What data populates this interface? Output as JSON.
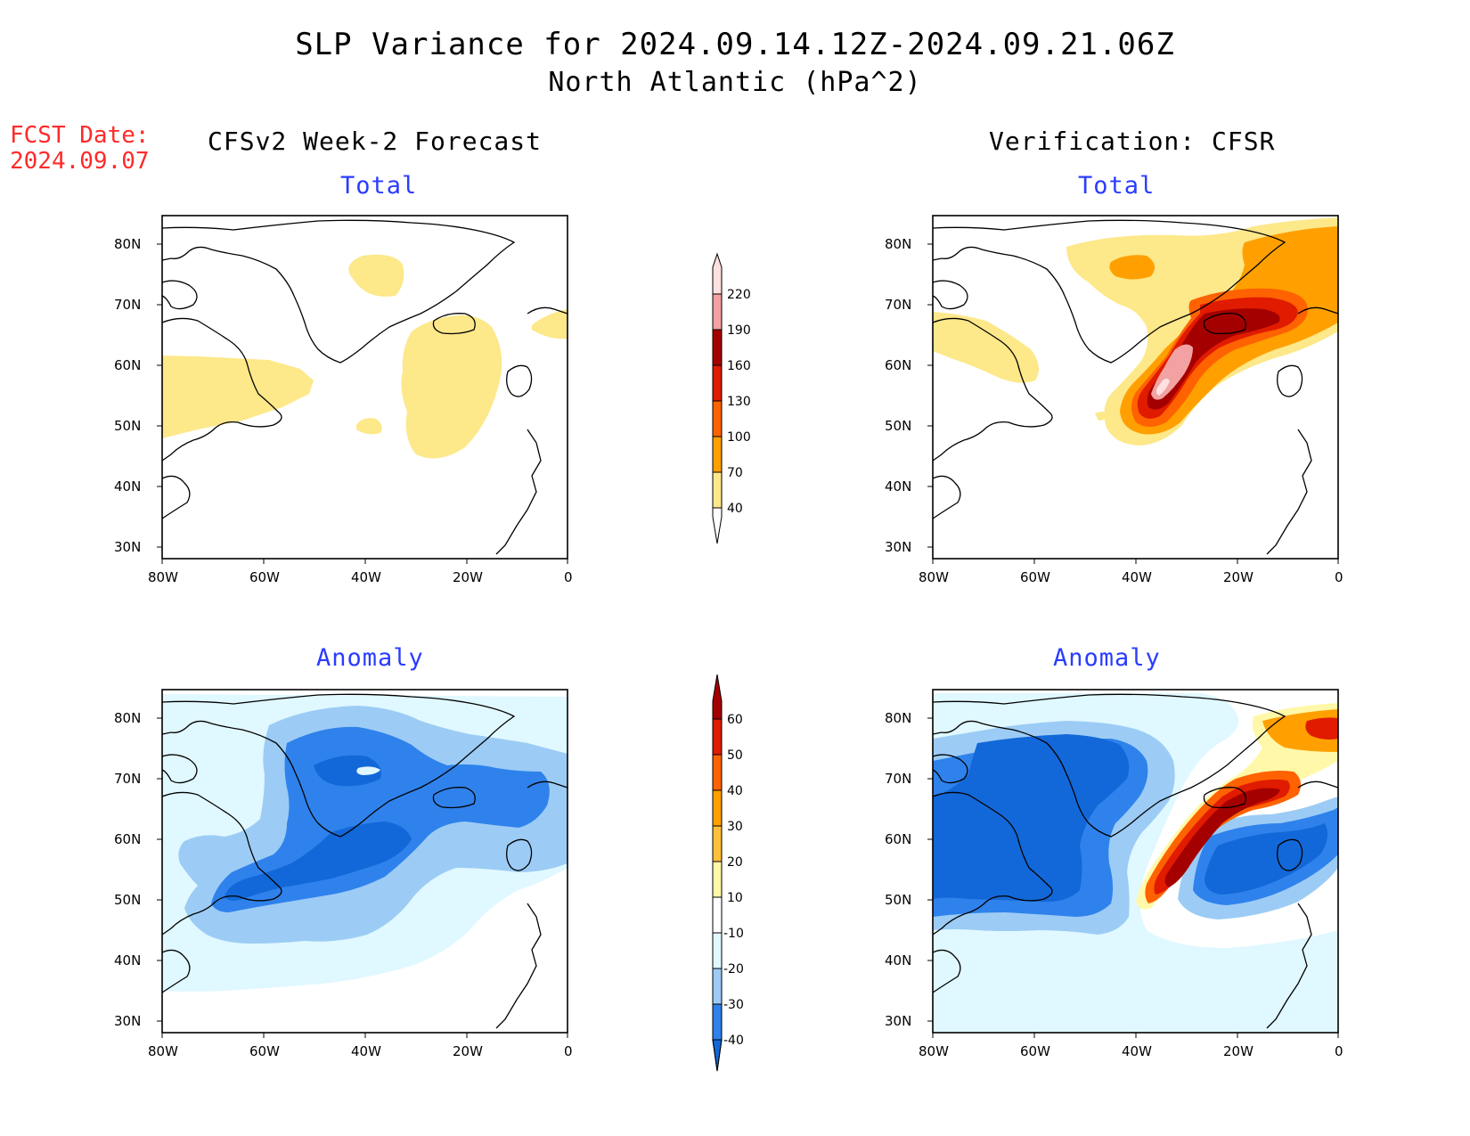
{
  "header": {
    "title_line1": "SLP Variance for 2024.09.14.12Z-2024.09.21.06Z",
    "title_line2": "North Atlantic (hPa^2)",
    "fcst_label": "FCST Date:",
    "fcst_date": "2024.09.07"
  },
  "columns": {
    "left_title": "CFSv2 Week-2 Forecast",
    "right_title": "Verification: CFSR"
  },
  "panels": {
    "forecast_total_label": "Total",
    "forecast_anomaly_label": "Anomaly",
    "verification_total_label": "Total",
    "verification_anomaly_label": "Anomaly"
  },
  "axes": {
    "lon_ticks": [
      "80W",
      "60W",
      "40W",
      "20W",
      "0"
    ],
    "lat_ticks": [
      "80N",
      "70N",
      "60N",
      "50N",
      "40N",
      "30N"
    ]
  },
  "colorbars": {
    "total": {
      "levels": [
        "40",
        "70",
        "100",
        "130",
        "160",
        "190",
        "220"
      ],
      "colors": [
        "#ffffff",
        "#fde88a",
        "#ffa000",
        "#ff6200",
        "#e01b00",
        "#a50000",
        "#f2a2a2",
        "#fde0e0"
      ]
    },
    "anomaly": {
      "levels": [
        "-40",
        "-30",
        "-20",
        "-10",
        "10",
        "20",
        "30",
        "40",
        "50",
        "60"
      ],
      "colors": [
        "#1268d8",
        "#2f82ec",
        "#9cccf5",
        "#e0f8ff",
        "#ffffff",
        "#fff8a8",
        "#ffc03a",
        "#ffa000",
        "#ff6200",
        "#e01b00",
        "#a50000"
      ]
    }
  },
  "map_colors": {
    "total_light": "#fde88a",
    "total_orange": "#ffa000",
    "total_dorange": "#ff6200",
    "total_red": "#e01b00",
    "total_dred": "#a50000",
    "total_pink": "#f2a2a2",
    "total_lpink": "#fde0e0",
    "anom_vlight": "#e0f8ff",
    "anom_light": "#9cccf5",
    "anom_med": "#2f82ec",
    "anom_dark": "#1268d8",
    "anom_yellow": "#fff8a8"
  }
}
